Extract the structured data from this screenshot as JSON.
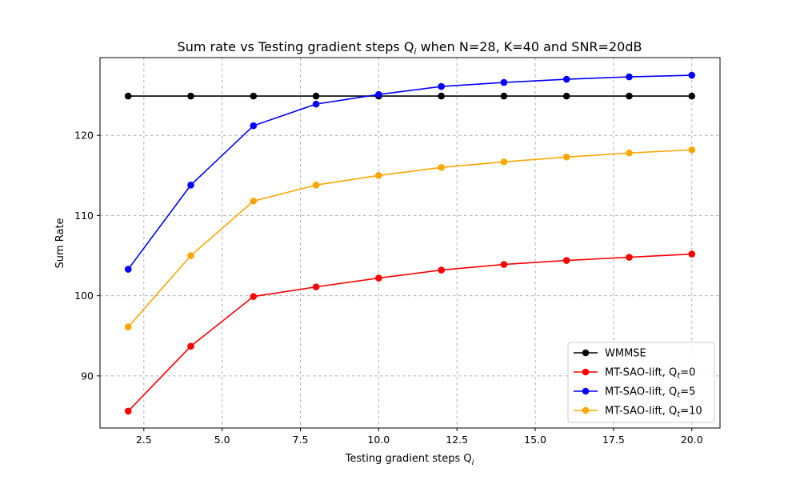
{
  "chart_data": {
    "type": "line",
    "title": "Sum rate vs Testing gradient steps Q",
    "title_sub": "i",
    "title_rest": " when N=28, K=40 and SNR=20dB",
    "xlabel": "Testing gradient steps Q",
    "xlabel_sub": "i",
    "ylabel": "Sum Rate",
    "xlim": [
      1.1,
      20.9
    ],
    "ylim": [
      83.5,
      129.7
    ],
    "xticks": [
      2.5,
      5.0,
      7.5,
      10.0,
      12.5,
      15.0,
      17.5,
      20.0
    ],
    "xtick_labels": [
      "2.5",
      "5.0",
      "7.5",
      "10.0",
      "12.5",
      "15.0",
      "17.5",
      "20.0"
    ],
    "yticks": [
      90,
      100,
      110,
      120
    ],
    "ytick_labels": [
      "90",
      "100",
      "110",
      "120"
    ],
    "grid": true,
    "legend_position": "bottom-right",
    "x": [
      2,
      4,
      6,
      8,
      10,
      12,
      14,
      16,
      18,
      20
    ],
    "series": [
      {
        "name": "WMMSE",
        "legend_base": "WMMSE",
        "legend_sub": "",
        "legend_rest": "",
        "color": "#000000",
        "values": [
          124.9,
          124.9,
          124.9,
          124.9,
          124.9,
          124.9,
          124.9,
          124.9,
          124.9,
          124.9
        ]
      },
      {
        "name": "MT-SAO-lift, Qt=0",
        "legend_base": "MT-SAO-lift, Q",
        "legend_sub": "t",
        "legend_rest": "=0",
        "color": "#ff0000",
        "values": [
          85.6,
          93.7,
          99.9,
          101.1,
          102.2,
          103.2,
          103.9,
          104.4,
          104.8,
          105.2
        ]
      },
      {
        "name": "MT-SAO-lift, Qt=5",
        "legend_base": "MT-SAO-lift, Q",
        "legend_sub": "t",
        "legend_rest": "=5",
        "color": "#0000ff",
        "values": [
          103.3,
          113.8,
          121.2,
          123.9,
          125.1,
          126.1,
          126.6,
          127.0,
          127.3,
          127.5
        ]
      },
      {
        "name": "MT-SAO-lift, Qt=10",
        "legend_base": "MT-SAO-lift, Q",
        "legend_sub": "t",
        "legend_rest": "=10",
        "color": "#ffa500",
        "values": [
          96.1,
          105.0,
          111.8,
          113.8,
          115.0,
          116.0,
          116.7,
          117.3,
          117.8,
          118.2
        ]
      }
    ]
  }
}
